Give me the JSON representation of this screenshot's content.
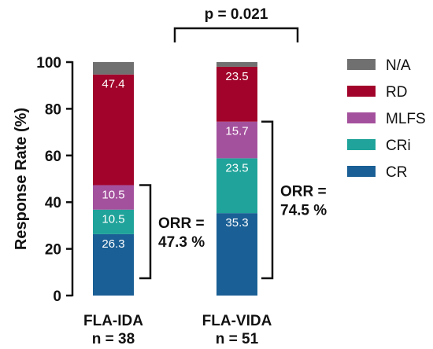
{
  "chart_data": {
    "type": "bar",
    "stacked": true,
    "ylabel": "Response Rate (%)",
    "ylim": [
      0,
      100
    ],
    "yticks": [
      0,
      20,
      40,
      60,
      80,
      100
    ],
    "categories": [
      "FLA-IDA",
      "FLA-VIDA"
    ],
    "category_sublabels": [
      "n = 38",
      "n = 51"
    ],
    "series": [
      {
        "name": "CR",
        "color": "#1a5f95",
        "values": [
          26.3,
          35.3
        ],
        "labels": [
          "26.3",
          "35.3"
        ]
      },
      {
        "name": "CRi",
        "color": "#1fa39a",
        "values": [
          10.5,
          23.5
        ],
        "labels": [
          "10.5",
          "23.5"
        ]
      },
      {
        "name": "MLFS",
        "color": "#a4519d",
        "values": [
          10.5,
          15.7
        ],
        "labels": [
          "10.5",
          "15.7"
        ]
      },
      {
        "name": "RD",
        "color": "#a1032a",
        "values": [
          47.4,
          23.5
        ],
        "labels": [
          "47.4",
          "23.5"
        ]
      },
      {
        "name": "N/A",
        "color": "#707070",
        "values": [
          5.3,
          2.0
        ],
        "labels": [
          "",
          ""
        ]
      }
    ],
    "legend_order": [
      "N/A",
      "RD",
      "MLFS",
      "CRi",
      "CR"
    ],
    "legend_position": "right",
    "orr": [
      {
        "category": "FLA-IDA",
        "lines": [
          "ORR =",
          "47.3 %"
        ],
        "from": 0,
        "to": 47.3
      },
      {
        "category": "FLA-VIDA",
        "lines": [
          "ORR =",
          "74.5 %"
        ],
        "from": 0,
        "to": 74.5
      }
    ],
    "significance": "p = 0.021"
  }
}
